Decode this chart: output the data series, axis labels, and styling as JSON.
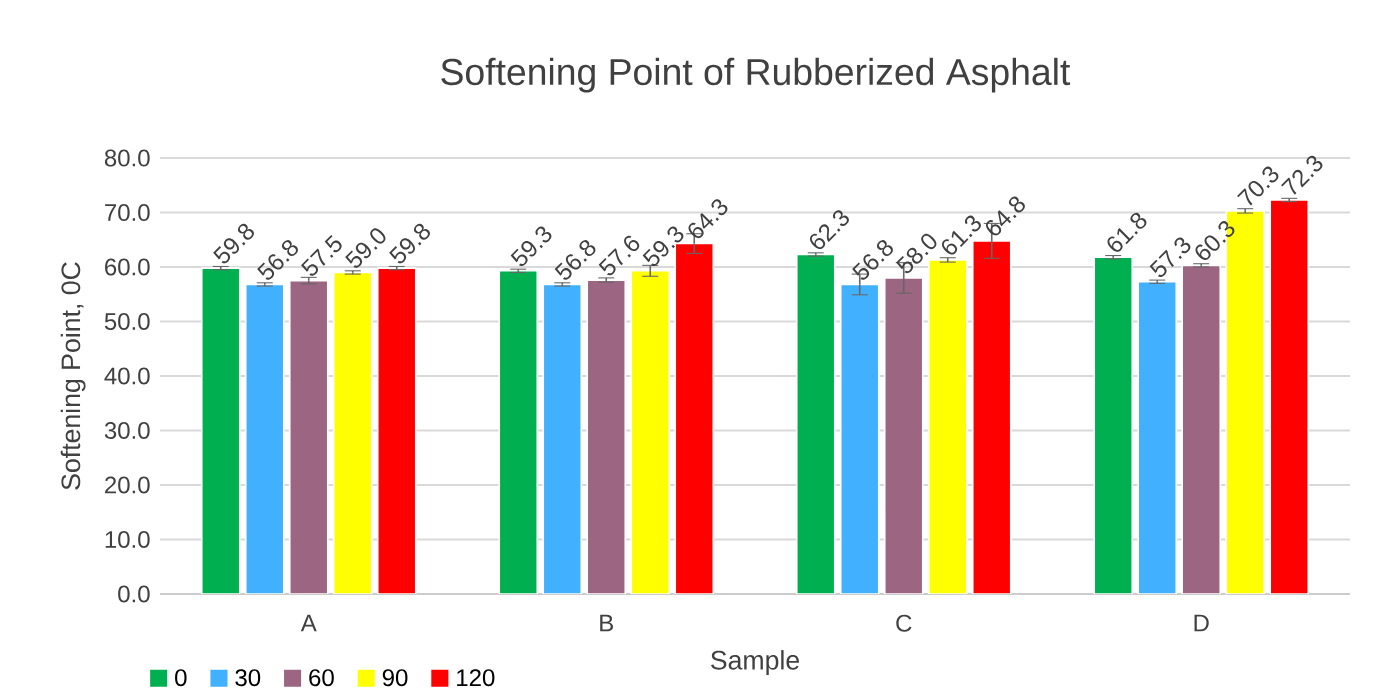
{
  "chart_data": {
    "type": "bar",
    "title": "Softening Point of Rubberized Asphalt",
    "xlabel": "Sample",
    "ylabel": "Softening Point, 0C",
    "categories": [
      "A",
      "B",
      "C",
      "D"
    ],
    "series": [
      {
        "name": "0",
        "color": "#00b050",
        "values": [
          59.8,
          59.3,
          62.3,
          61.8
        ],
        "value_labels": [
          "59.8",
          "59.3",
          "62.3",
          "61.8"
        ],
        "errors": [
          0.3,
          0.3,
          0.3,
          0.3
        ]
      },
      {
        "name": "30",
        "color": "#41b0ff",
        "values": [
          56.8,
          56.8,
          56.8,
          57.3
        ],
        "value_labels": [
          "56.8",
          "56.8",
          "56.8",
          "57.3"
        ],
        "errors": [
          0.3,
          0.3,
          1.9,
          0.3
        ]
      },
      {
        "name": "60",
        "color": "#9c6582",
        "values": [
          57.5,
          57.6,
          58.0,
          60.3
        ],
        "value_labels": [
          "57.5",
          "57.6",
          "58.0",
          "60.3"
        ],
        "errors": [
          0.6,
          0.4,
          2.8,
          0.3
        ]
      },
      {
        "name": "90",
        "color": "#ffff00",
        "values": [
          59.0,
          59.3,
          61.3,
          70.3
        ],
        "value_labels": [
          "59.0",
          "59.3",
          "61.3",
          "70.3"
        ],
        "errors": [
          0.3,
          1.0,
          0.4,
          0.4
        ]
      },
      {
        "name": "120",
        "color": "#ff0000",
        "values": [
          59.8,
          64.3,
          64.8,
          72.3
        ],
        "value_labels": [
          "59.8",
          "64.3",
          "64.8",
          "72.3"
        ],
        "errors": [
          0.3,
          1.8,
          3.2,
          0.3
        ]
      }
    ],
    "ylim": [
      0,
      80
    ],
    "yticks": [
      {
        "value": 0,
        "label": "0.0"
      },
      {
        "value": 10,
        "label": "10.0"
      },
      {
        "value": 20,
        "label": "20.0"
      },
      {
        "value": 30,
        "label": "30.0"
      },
      {
        "value": 40,
        "label": "40.0"
      },
      {
        "value": 50,
        "label": "50.0"
      },
      {
        "value": 60,
        "label": "60.0"
      },
      {
        "value": 70,
        "label": "70.0"
      },
      {
        "value": 80,
        "label": "80.0"
      }
    ],
    "grid": "y",
    "legend": "bottom left"
  }
}
